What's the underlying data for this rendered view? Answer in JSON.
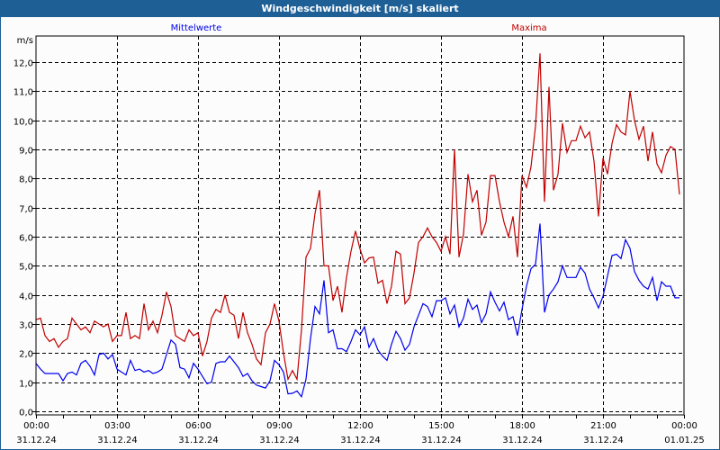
{
  "window": {
    "title": "Windgeschwindigkeit [m/s] skaliert"
  },
  "chart_data": {
    "type": "line",
    "title": "Windgeschwindigkeit [m/s] skaliert",
    "ylabel": "m/s",
    "ylim": [
      0,
      12.5
    ],
    "yticks": [
      "0,0",
      "1,0",
      "2,0",
      "3,0",
      "4,0",
      "5,0",
      "6,0",
      "7,0",
      "8,0",
      "9,0",
      "10,0",
      "11,0",
      "12,0"
    ],
    "xlim_hours": [
      0,
      24
    ],
    "xticks": [
      {
        "time": "00:00",
        "date": "31.12.24"
      },
      {
        "time": "03:00",
        "date": "31.12.24"
      },
      {
        "time": "06:00",
        "date": "31.12.24"
      },
      {
        "time": "09:00",
        "date": "31.12.24"
      },
      {
        "time": "12:00",
        "date": "31.12.24"
      },
      {
        "time": "15:00",
        "date": "31.12.24"
      },
      {
        "time": "18:00",
        "date": "31.12.24"
      },
      {
        "time": "21:00",
        "date": "31.12.24"
      },
      {
        "time": "00:00",
        "date": "01.01.25"
      }
    ],
    "grid": true,
    "step_minutes": 10,
    "series": [
      {
        "name": "Mittelwerte",
        "color": "#0000ee",
        "values": [
          1.65,
          1.45,
          1.3,
          1.3,
          1.3,
          1.3,
          1.05,
          1.3,
          1.35,
          1.25,
          1.65,
          1.75,
          1.55,
          1.25,
          1.95,
          2.0,
          1.8,
          1.95,
          1.45,
          1.35,
          1.25,
          1.75,
          1.4,
          1.45,
          1.35,
          1.4,
          1.3,
          1.35,
          1.45,
          1.95,
          2.45,
          2.3,
          1.5,
          1.45,
          1.15,
          1.65,
          1.45,
          1.2,
          0.95,
          1.0,
          1.65,
          1.7,
          1.7,
          1.9,
          1.7,
          1.5,
          1.2,
          1.3,
          1.05,
          0.9,
          0.85,
          0.8,
          1.05,
          1.75,
          1.6,
          1.35,
          0.6,
          0.62,
          0.7,
          0.5,
          1.1,
          2.5,
          3.6,
          3.35,
          4.5,
          2.7,
          2.8,
          2.15,
          2.15,
          2.05,
          2.4,
          2.8,
          2.63,
          2.9,
          2.2,
          2.5,
          2.1,
          1.9,
          1.75,
          2.3,
          2.75,
          2.5,
          2.1,
          2.3,
          2.9,
          3.3,
          3.7,
          3.6,
          3.25,
          3.8,
          3.8,
          3.9,
          3.35,
          3.65,
          2.9,
          3.2,
          3.85,
          3.5,
          3.65,
          3.05,
          3.35,
          4.1,
          3.75,
          3.45,
          3.75,
          3.15,
          3.25,
          2.6,
          3.5,
          4.3,
          4.9,
          5.05,
          6.45,
          3.4,
          4.0,
          4.2,
          4.45,
          5.0,
          4.6,
          4.6,
          4.6,
          4.95,
          4.75,
          4.2,
          3.9,
          3.55,
          3.95,
          4.65,
          5.35,
          5.4,
          5.25,
          5.9,
          5.6,
          4.8,
          4.5,
          4.3,
          4.2,
          4.6,
          3.8,
          4.45,
          4.3,
          4.3,
          3.9,
          3.9
        ]
      },
      {
        "name": "Maxima",
        "color": "#c00000",
        "values": [
          3.15,
          3.2,
          2.6,
          2.4,
          2.5,
          2.2,
          2.4,
          2.5,
          3.2,
          3.0,
          2.8,
          2.9,
          2.7,
          3.1,
          3.0,
          2.9,
          3.0,
          2.4,
          2.6,
          2.6,
          3.4,
          2.5,
          2.6,
          2.5,
          3.7,
          2.8,
          3.1,
          2.7,
          3.3,
          4.1,
          3.6,
          2.6,
          2.5,
          2.4,
          2.8,
          2.6,
          2.7,
          1.9,
          2.4,
          3.2,
          3.5,
          3.4,
          4.0,
          3.4,
          3.3,
          2.5,
          3.4,
          2.7,
          2.3,
          1.8,
          1.6,
          2.7,
          3.0,
          3.7,
          3.1,
          2.0,
          1.1,
          1.4,
          1.1,
          2.8,
          5.3,
          5.6,
          6.8,
          7.6,
          5.0,
          5.0,
          3.8,
          4.3,
          3.4,
          4.6,
          5.5,
          6.2,
          5.58,
          5.1,
          5.27,
          5.3,
          4.4,
          4.5,
          3.7,
          4.3,
          5.5,
          5.4,
          3.7,
          3.9,
          4.75,
          5.8,
          6.0,
          6.3,
          6.0,
          5.8,
          5.5,
          6.0,
          5.4,
          9.0,
          5.3,
          6.1,
          8.15,
          7.2,
          7.6,
          6.05,
          6.5,
          8.1,
          8.1,
          7.2,
          6.5,
          6.0,
          6.7,
          5.3,
          8.1,
          7.7,
          8.4,
          9.8,
          12.3,
          7.2,
          11.15,
          7.6,
          8.15,
          9.9,
          8.9,
          9.3,
          9.3,
          9.8,
          9.4,
          9.6,
          8.6,
          6.7,
          8.7,
          8.15,
          9.2,
          9.85,
          9.6,
          9.5,
          11.0,
          10.0,
          9.35,
          9.8,
          8.6,
          9.6,
          8.5,
          8.2,
          8.8,
          9.1,
          9.0,
          7.45
        ]
      }
    ],
    "legend": "top"
  }
}
